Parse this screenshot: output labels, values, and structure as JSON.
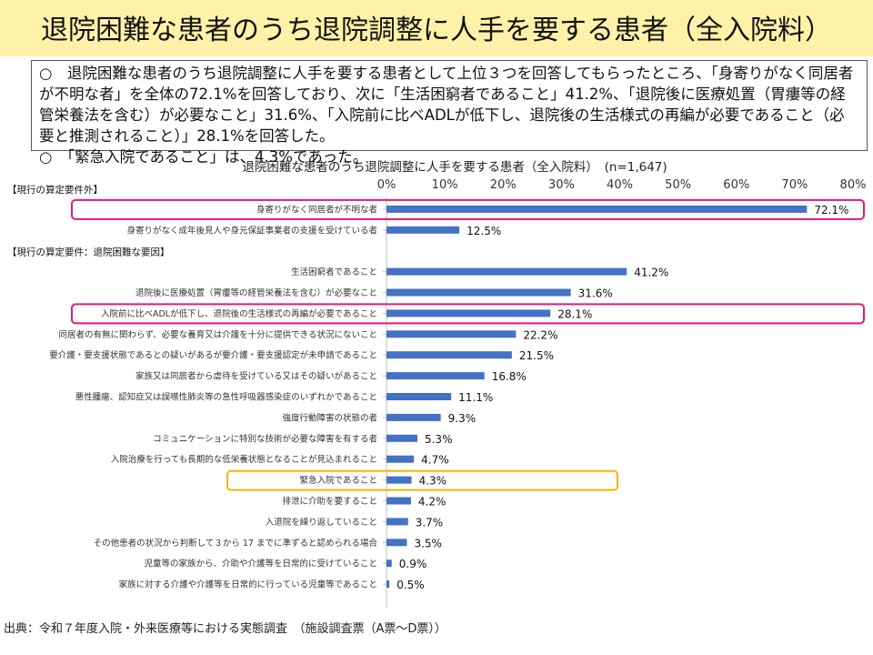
{
  "page": {
    "title": "退院困難な患者のうち退院調整に人手を要する患者（全入院料）",
    "summary": [
      "○　退院困難な患者のうち退院調整に人手を要する患者として上位３つを回答してもらったところ、「身寄りがなく同居者が不明な者」を全体の72.1%を回答しており、次に「生活困窮者であること」41.2%、「退院後に医療処置（胃瘻等の経管栄養法を含む）が必要なこと」31.6%、「入院前に比べADLが低下し、退院後の生活様式の再編が必要であること（必要と推測されること）」28.1%を回答した。",
      "○　「緊急入院であること」は、4.3%であった。"
    ],
    "source": "出典：令和７年度入院・外来医療等における実態調査　（施設調査票（A票～D票））"
  },
  "chart_data": {
    "type": "bar",
    "orientation": "horizontal",
    "title": "退院困難な患者のうち退院調整に人手を要する患者（全入院料）　(n=1,647)",
    "xlim": [
      0,
      80
    ],
    "xticks": [
      "0%",
      "10%",
      "20%",
      "30%",
      "40%",
      "50%",
      "60%",
      "70%",
      "80%"
    ],
    "bar_color": "#4472c4",
    "groups": [
      {
        "label": "【現行の算定要件外】",
        "items": [
          {
            "category": "身寄りがなく同居者が不明な者",
            "value": 72.1,
            "label": "72.1%",
            "highlight": "#e6197a"
          },
          {
            "category": "身寄りがなく成年後見人や身元保証事業者の支援を受けている者",
            "value": 12.5,
            "label": "12.5%"
          }
        ]
      },
      {
        "label": "【現行の算定要件：退院困難な要因】",
        "items": [
          {
            "category": "生活困窮者であること",
            "value": 41.2,
            "label": "41.2%"
          },
          {
            "category": "退院後に医療処置（胃瘻等の経管栄養法を含む）が必要なこと",
            "value": 31.6,
            "label": "31.6%"
          },
          {
            "category": "入院前に比べADLが低下し、退院後の生活様式の再編が必要であること",
            "value": 28.1,
            "label": "28.1%",
            "highlight": "#e6197a"
          },
          {
            "category": "同居者の有無に関わらず、必要な養育又は介護を十分に提供できる状況にないこと",
            "value": 22.2,
            "label": "22.2%"
          },
          {
            "category": "要介護・要支援状態であるとの疑いがあるが要介護・要支援認定が未申請であること",
            "value": 21.5,
            "label": "21.5%"
          },
          {
            "category": "家族又は同居者から虐待を受けている又はその疑いがあること",
            "value": 16.8,
            "label": "16.8%"
          },
          {
            "category": "悪性腫瘍、認知症又は誤嚥性肺炎等の急性呼吸器感染症のいずれかであること",
            "value": 11.1,
            "label": "11.1%"
          },
          {
            "category": "強度行動障害の状態の者",
            "value": 9.3,
            "label": "9.3%"
          },
          {
            "category": "コミュニケーションに特別な技術が必要な障害を有する者",
            "value": 5.3,
            "label": "5.3%"
          },
          {
            "category": "入院治療を行っても長期的な低栄養状態となることが見込まれること",
            "value": 4.7,
            "label": "4.7%"
          },
          {
            "category": "緊急入院であること",
            "value": 4.3,
            "label": "4.3%",
            "highlight": "#f5b400"
          },
          {
            "category": "排泄に介助を要すること",
            "value": 4.2,
            "label": "4.2%"
          },
          {
            "category": "入退院を繰り返していること",
            "value": 3.7,
            "label": "3.7%"
          },
          {
            "category": "その他患者の状況から判断して３から 17 までに準ずると認められる場合",
            "value": 3.5,
            "label": "3.5%"
          },
          {
            "category": "児童等の家族から、介助や介護等を日常的に受けていること",
            "value": 0.9,
            "label": "0.9%"
          },
          {
            "category": "家族に対する介護や介護等を日常的に行っている児童等であること",
            "value": 0.5,
            "label": "0.5%"
          }
        ]
      }
    ]
  }
}
